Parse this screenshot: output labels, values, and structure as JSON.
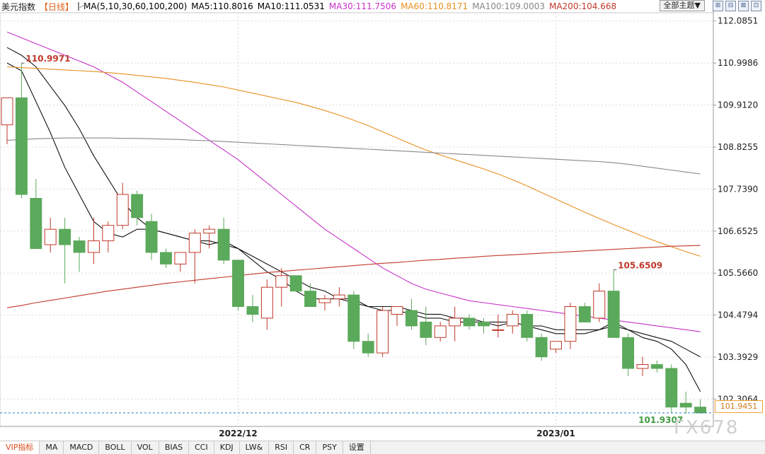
{
  "header": {
    "title": "美元指数",
    "period": "【日线】",
    "ma_legend": [
      {
        "label": "MA(5,10,30,60,100,200)",
        "color": "#222222"
      },
      {
        "label": "MA5:110.8016",
        "color": "#222222"
      },
      {
        "label": "MA10:111.0531",
        "color": "#222222"
      },
      {
        "label": "MA30:111.7506",
        "color": "#c832c8"
      },
      {
        "label": "MA60:110.8171",
        "color": "#e89020"
      },
      {
        "label": "MA100:109.0003",
        "color": "#888888"
      },
      {
        "label": "MA200:104.668",
        "color": "#c0392b"
      }
    ],
    "theme_button": "全部主题▼",
    "tool_buttons": [
      "⊞",
      "⊟",
      "⊠",
      "⊡"
    ]
  },
  "last_value_label": "101.9451",
  "watermark": "FX678",
  "bottom_tabs": [
    "VIP指标",
    "MA",
    "MACD",
    "BOLL",
    "VOL",
    "BIAS",
    "CCI",
    "KDJ",
    "LW&",
    "RSI",
    "CR",
    "PSY",
    "设置"
  ],
  "chart_data": {
    "type": "candlestick",
    "y_ticks": [
      "112.0851",
      "110.9986",
      "109.9120",
      "108.8255",
      "107.7390",
      "106.6525",
      "105.5660",
      "104.4794",
      "103.3929",
      "102.3064"
    ],
    "ylim": [
      101.6,
      112.3
    ],
    "x_labels": [
      {
        "index": 16,
        "label": "2022/12"
      },
      {
        "index": 38,
        "label": "2023/01"
      }
    ],
    "annotations": [
      {
        "index": 1,
        "value": 110.9971,
        "label": "110.9971",
        "kind": "high"
      },
      {
        "index": 42,
        "value": 105.6509,
        "label": "105.6509",
        "kind": "high"
      },
      {
        "index": 47,
        "value": 101.9307,
        "label": "101.9307",
        "kind": "low"
      }
    ],
    "colors": {
      "up": "#c0392b",
      "down": "#5ba95b"
    },
    "candles": [
      {
        "o": 109.4,
        "h": 110.1,
        "l": 108.9,
        "c": 110.1
      },
      {
        "o": 110.1,
        "h": 111.0,
        "l": 107.5,
        "c": 107.6
      },
      {
        "o": 107.5,
        "h": 108.0,
        "l": 106.3,
        "c": 106.2
      },
      {
        "o": 106.3,
        "h": 107.0,
        "l": 106.1,
        "c": 106.7
      },
      {
        "o": 106.7,
        "h": 107.0,
        "l": 105.3,
        "c": 106.3
      },
      {
        "o": 106.4,
        "h": 106.5,
        "l": 105.6,
        "c": 106.1
      },
      {
        "o": 106.1,
        "h": 107.0,
        "l": 105.8,
        "c": 106.4
      },
      {
        "o": 106.4,
        "h": 106.9,
        "l": 106.1,
        "c": 106.8
      },
      {
        "o": 106.8,
        "h": 107.9,
        "l": 106.7,
        "c": 107.6
      },
      {
        "o": 107.6,
        "h": 107.7,
        "l": 106.8,
        "c": 107.0
      },
      {
        "o": 106.9,
        "h": 107.1,
        "l": 105.9,
        "c": 106.1
      },
      {
        "o": 106.1,
        "h": 106.2,
        "l": 105.7,
        "c": 105.8
      },
      {
        "o": 105.8,
        "h": 106.1,
        "l": 105.6,
        "c": 106.1
      },
      {
        "o": 106.1,
        "h": 106.7,
        "l": 105.3,
        "c": 106.6
      },
      {
        "o": 106.6,
        "h": 106.8,
        "l": 106.2,
        "c": 106.7
      },
      {
        "o": 106.7,
        "h": 107.0,
        "l": 105.8,
        "c": 105.9
      },
      {
        "o": 105.9,
        "h": 105.9,
        "l": 104.6,
        "c": 104.7
      },
      {
        "o": 104.7,
        "h": 105.0,
        "l": 104.3,
        "c": 104.5
      },
      {
        "o": 104.4,
        "h": 105.4,
        "l": 104.1,
        "c": 105.2
      },
      {
        "o": 105.2,
        "h": 105.7,
        "l": 104.7,
        "c": 105.5
      },
      {
        "o": 105.5,
        "h": 105.5,
        "l": 105.1,
        "c": 105.1
      },
      {
        "o": 105.1,
        "h": 105.3,
        "l": 104.7,
        "c": 104.7
      },
      {
        "o": 104.8,
        "h": 105.0,
        "l": 104.6,
        "c": 104.9
      },
      {
        "o": 104.9,
        "h": 105.2,
        "l": 104.7,
        "c": 105.0
      },
      {
        "o": 105.0,
        "h": 105.1,
        "l": 103.6,
        "c": 103.8
      },
      {
        "o": 103.8,
        "h": 104.0,
        "l": 103.4,
        "c": 103.5
      },
      {
        "o": 103.5,
        "h": 104.7,
        "l": 103.4,
        "c": 104.6
      },
      {
        "o": 104.5,
        "h": 104.7,
        "l": 104.2,
        "c": 104.7
      },
      {
        "o": 104.6,
        "h": 104.9,
        "l": 104.1,
        "c": 104.2
      },
      {
        "o": 104.3,
        "h": 104.7,
        "l": 103.7,
        "c": 103.9
      },
      {
        "o": 103.9,
        "h": 104.3,
        "l": 103.8,
        "c": 104.2
      },
      {
        "o": 104.2,
        "h": 104.7,
        "l": 103.8,
        "c": 104.4
      },
      {
        "o": 104.4,
        "h": 104.5,
        "l": 104.1,
        "c": 104.2
      },
      {
        "o": 104.3,
        "h": 104.4,
        "l": 104.0,
        "c": 104.2
      },
      {
        "o": 104.1,
        "h": 104.5,
        "l": 103.9,
        "c": 104.1
      },
      {
        "o": 104.2,
        "h": 104.6,
        "l": 104.0,
        "c": 104.5
      },
      {
        "o": 104.5,
        "h": 104.6,
        "l": 103.8,
        "c": 103.9
      },
      {
        "o": 103.9,
        "h": 104.0,
        "l": 103.3,
        "c": 103.4
      },
      {
        "o": 103.6,
        "h": 103.8,
        "l": 103.5,
        "c": 103.8
      },
      {
        "o": 103.8,
        "h": 104.8,
        "l": 103.6,
        "c": 104.7
      },
      {
        "o": 104.7,
        "h": 104.8,
        "l": 104.3,
        "c": 104.3
      },
      {
        "o": 104.4,
        "h": 105.3,
        "l": 104.3,
        "c": 105.1
      },
      {
        "o": 105.1,
        "h": 105.65,
        "l": 103.9,
        "c": 103.9
      },
      {
        "o": 103.9,
        "h": 104.0,
        "l": 102.9,
        "c": 103.1
      },
      {
        "o": 103.1,
        "h": 103.4,
        "l": 102.9,
        "c": 103.2
      },
      {
        "o": 103.2,
        "h": 103.3,
        "l": 103.0,
        "c": 103.1
      },
      {
        "o": 103.1,
        "h": 103.2,
        "l": 101.95,
        "c": 102.1
      },
      {
        "o": 102.2,
        "h": 102.5,
        "l": 101.93,
        "c": 102.1
      },
      {
        "o": 102.1,
        "h": 102.3,
        "l": 101.93,
        "c": 101.95
      }
    ],
    "ma_lines": [
      {
        "name": "MA5",
        "color": "#111111",
        "values": [
          111.0,
          110.8,
          110.0,
          109.2,
          108.3,
          107.6,
          106.9,
          106.6,
          106.5,
          106.7,
          106.7,
          106.6,
          106.5,
          106.4,
          106.3,
          106.4,
          106.2,
          105.9,
          105.6,
          105.4,
          105.1,
          104.9,
          104.9,
          104.9,
          104.9,
          104.7,
          104.6,
          104.6,
          104.5,
          104.4,
          104.4,
          104.3,
          104.3,
          104.3,
          104.2,
          104.3,
          104.2,
          104.1,
          104.0,
          104.0,
          104.0,
          104.1,
          104.3,
          104.1,
          103.9,
          103.8,
          103.6,
          103.2,
          102.5
        ]
      },
      {
        "name": "MA10",
        "color": "#111111",
        "values": [
          111.4,
          111.2,
          110.9,
          110.4,
          109.9,
          109.3,
          108.6,
          108.0,
          107.4,
          107.0,
          106.7,
          106.6,
          106.5,
          106.4,
          106.4,
          106.3,
          106.2,
          106.0,
          105.8,
          105.6,
          105.4,
          105.2,
          105.1,
          104.9,
          104.8,
          104.7,
          104.7,
          104.7,
          104.6,
          104.5,
          104.5,
          104.4,
          104.4,
          104.3,
          104.3,
          104.3,
          104.2,
          104.2,
          104.1,
          104.1,
          104.1,
          104.1,
          104.2,
          104.1,
          104.0,
          103.9,
          103.8,
          103.6,
          103.4
        ]
      },
      {
        "name": "MA30",
        "color": "#c832c8",
        "values": [
          111.8,
          111.65,
          111.5,
          111.35,
          111.2,
          111.05,
          110.9,
          110.7,
          110.5,
          110.25,
          110.0,
          109.75,
          109.5,
          109.25,
          109.0,
          108.75,
          108.5,
          108.2,
          107.9,
          107.6,
          107.3,
          107.0,
          106.7,
          106.45,
          106.2,
          105.95,
          105.7,
          105.5,
          105.3,
          105.15,
          105.05,
          104.95,
          104.85,
          104.8,
          104.75,
          104.7,
          104.65,
          104.6,
          104.55,
          104.5,
          104.45,
          104.4,
          104.35,
          104.3,
          104.25,
          104.2,
          104.15,
          104.1,
          104.05
        ]
      },
      {
        "name": "MA60",
        "color": "#e89020",
        "values": [
          110.9,
          110.88,
          110.86,
          110.84,
          110.82,
          110.8,
          110.78,
          110.75,
          110.72,
          110.68,
          110.64,
          110.6,
          110.55,
          110.5,
          110.44,
          110.38,
          110.3,
          110.22,
          110.14,
          110.06,
          109.98,
          109.88,
          109.77,
          109.65,
          109.52,
          109.38,
          109.22,
          109.06,
          108.9,
          108.75,
          108.62,
          108.5,
          108.38,
          108.26,
          108.13,
          107.98,
          107.82,
          107.65,
          107.48,
          107.31,
          107.14,
          106.98,
          106.82,
          106.67,
          106.52,
          106.38,
          106.25,
          106.12,
          106.0
        ]
      },
      {
        "name": "MA100",
        "color": "#888888",
        "values": [
          109.0,
          109.02,
          109.04,
          109.05,
          109.06,
          109.06,
          109.06,
          109.06,
          109.05,
          109.05,
          109.04,
          109.03,
          109.02,
          109.0,
          108.99,
          108.97,
          108.95,
          108.93,
          108.91,
          108.89,
          108.87,
          108.85,
          108.83,
          108.81,
          108.79,
          108.77,
          108.75,
          108.73,
          108.71,
          108.69,
          108.67,
          108.65,
          108.63,
          108.61,
          108.59,
          108.57,
          108.55,
          108.53,
          108.51,
          108.49,
          108.47,
          108.45,
          108.42,
          108.38,
          108.33,
          108.28,
          108.23,
          108.18,
          108.13
        ]
      },
      {
        "name": "MA200",
        "color": "#c0392b",
        "values": [
          104.67,
          104.73,
          104.8,
          104.86,
          104.92,
          104.98,
          105.04,
          105.1,
          105.15,
          105.2,
          105.25,
          105.3,
          105.34,
          105.38,
          105.42,
          105.46,
          105.5,
          105.54,
          105.58,
          105.61,
          105.64,
          105.67,
          105.7,
          105.73,
          105.76,
          105.79,
          105.82,
          105.84,
          105.87,
          105.9,
          105.92,
          105.95,
          105.97,
          106.0,
          106.02,
          106.04,
          106.06,
          106.08,
          106.1,
          106.12,
          106.14,
          106.16,
          106.18,
          106.2,
          106.22,
          106.24,
          106.26,
          106.27,
          106.28
        ]
      }
    ],
    "current_line": 101.95,
    "grid": true
  }
}
